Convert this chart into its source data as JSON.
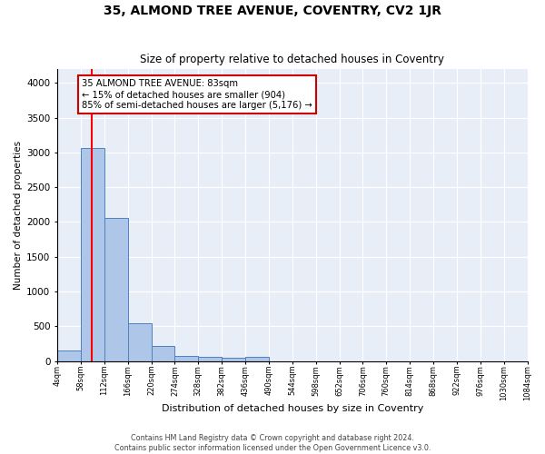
{
  "title": "35, ALMOND TREE AVENUE, COVENTRY, CV2 1JR",
  "subtitle": "Size of property relative to detached houses in Coventry",
  "xlabel": "Distribution of detached houses by size in Coventry",
  "ylabel": "Number of detached properties",
  "bin_edges": [
    4,
    58,
    112,
    166,
    220,
    274,
    328,
    382,
    436,
    490,
    544,
    598,
    652,
    706,
    760,
    814,
    868,
    922,
    976,
    1030,
    1084
  ],
  "bar_heights": [
    150,
    3060,
    2060,
    550,
    220,
    80,
    55,
    45,
    55,
    0,
    0,
    0,
    0,
    0,
    0,
    0,
    0,
    0,
    0,
    0
  ],
  "bar_color": "#aec6e8",
  "bar_edge_color": "#5080c0",
  "bg_color": "#e8eef8",
  "grid_color": "#ffffff",
  "red_line_x": 83,
  "annotation_text": "35 ALMOND TREE AVENUE: 83sqm\n← 15% of detached houses are smaller (904)\n85% of semi-detached houses are larger (5,176) →",
  "annotation_box_color": "#ffffff",
  "annotation_border_color": "#cc0000",
  "ylim": [
    0,
    4200
  ],
  "yticks": [
    0,
    500,
    1000,
    1500,
    2000,
    2500,
    3000,
    3500,
    4000
  ],
  "footer_line1": "Contains HM Land Registry data © Crown copyright and database right 2024.",
  "footer_line2": "Contains public sector information licensed under the Open Government Licence v3.0."
}
